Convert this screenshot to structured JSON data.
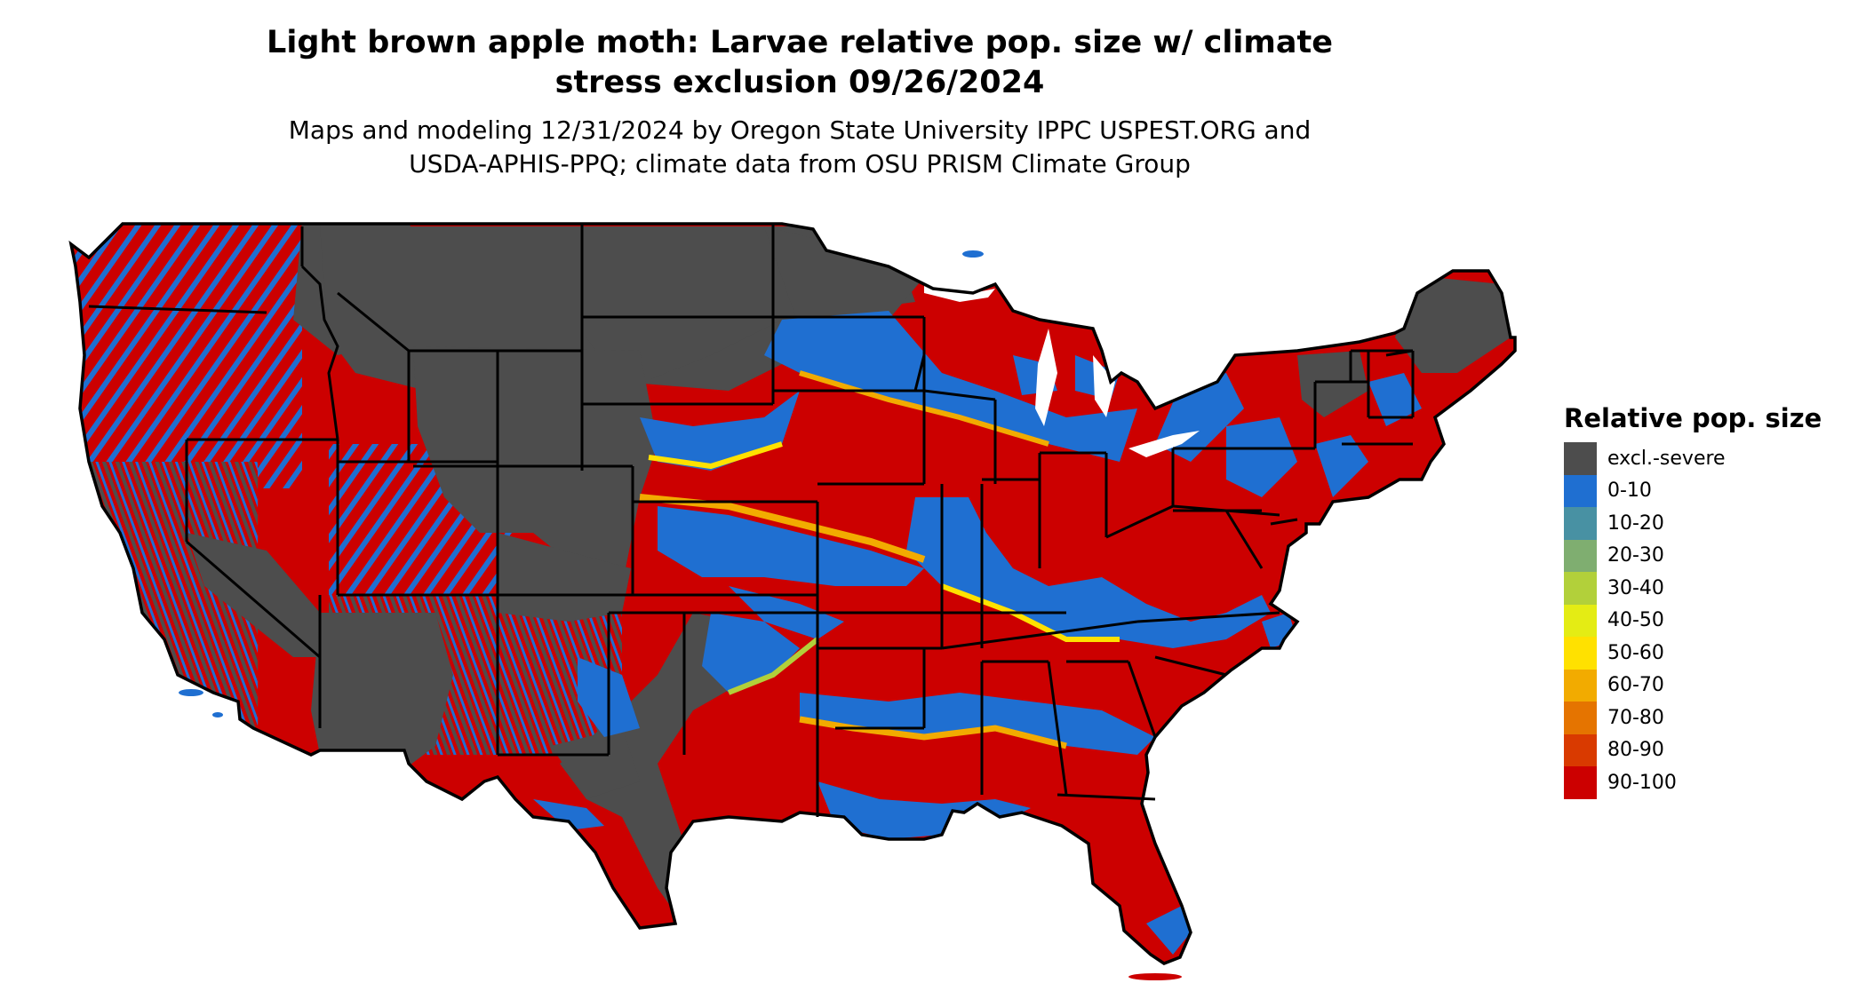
{
  "title": "Light brown apple moth: Larvae relative pop. size w/ climate\nstress exclusion 09/26/2024",
  "subtitle": "Maps and modeling 12/31/2024 by Oregon State University IPPC USPEST.ORG and\nUSDA-APHIS-PPQ; climate data from OSU PRISM Climate Group",
  "legend": {
    "title": "Relative pop. size",
    "items": [
      {
        "label": "excl.-severe",
        "color": "#4d4d4d"
      },
      {
        "label": "0-10",
        "color": "#1f6fd1"
      },
      {
        "label": "10-20",
        "color": "#4891a3"
      },
      {
        "label": "20-30",
        "color": "#7fae70"
      },
      {
        "label": "30-40",
        "color": "#b2d03a"
      },
      {
        "label": "40-50",
        "color": "#e4ec14"
      },
      {
        "label": "50-60",
        "color": "#ffe100"
      },
      {
        "label": "60-70",
        "color": "#f2ab00"
      },
      {
        "label": "70-80",
        "color": "#e57400"
      },
      {
        "label": "80-90",
        "color": "#d93a00"
      },
      {
        "label": "90-100",
        "color": "#cc0000"
      }
    ]
  }
}
